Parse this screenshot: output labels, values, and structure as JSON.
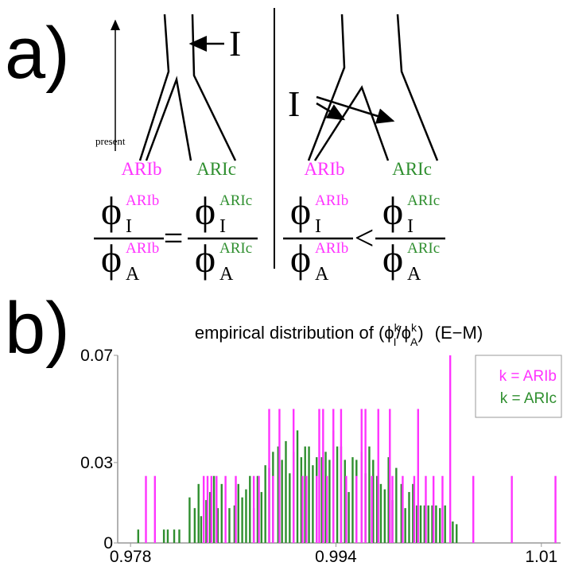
{
  "panel_a": {
    "label": "a)",
    "present": "present",
    "I_left": "I",
    "I_right": "I",
    "left_tree_labels": [
      "ARIb",
      "ARIc"
    ],
    "right_tree_labels": [
      "ARIb",
      "ARIc"
    ],
    "phi": "ϕ",
    "sub_I": "I",
    "sub_A": "A",
    "equals": "=",
    "less": "<"
  },
  "panel_b_label": "b)",
  "chart_data": {
    "type": "bar",
    "title": {
      "text": "empirical distribution of (",
      "phi": "ϕ",
      "sup": "k",
      "sub_num": "I",
      "slash": "/",
      "sub_den": "A",
      "close": ")",
      "method": "(E−M)"
    },
    "xlim": [
      0.977,
      1.0115
    ],
    "xticks": [
      0.978,
      0.994,
      1.01
    ],
    "ylim": [
      0,
      0.07
    ],
    "yticks": [
      0,
      0.03,
      0.07
    ],
    "legend": "upper right",
    "series": [
      {
        "name": "k = ARIc",
        "color": "#2f8f2f",
        "x": [
          0.9786,
          0.9806,
          0.9809,
          0.9814,
          0.9818,
          0.9826,
          0.983,
          0.9833,
          0.9835,
          0.9839,
          0.9842,
          0.9845,
          0.9848,
          0.9851,
          0.9857,
          0.9861,
          0.9864,
          0.9867,
          0.987,
          0.9873,
          0.9876,
          0.9879,
          0.9882,
          0.9885,
          0.9888,
          0.9891,
          0.9895,
          0.9898,
          0.9901,
          0.9904,
          0.9907,
          0.991,
          0.9913,
          0.9916,
          0.9919,
          0.9922,
          0.9925,
          0.9929,
          0.9932,
          0.9935,
          0.9938,
          0.9941,
          0.9944,
          0.9947,
          0.995,
          0.9953,
          0.9956,
          0.996,
          0.9963,
          0.9966,
          0.9969,
          0.9972,
          0.9975,
          0.9978,
          0.9981,
          0.9984,
          0.9987,
          0.9991,
          0.9994,
          0.9997,
          1.0,
          1.0003,
          1.0006,
          1.0009,
          1.0012,
          1.0015,
          1.0018,
          1.0021,
          1.0025,
          1.0031,
          1.0034
        ],
        "values": [
          0.005,
          0.005,
          0.005,
          0.005,
          0.005,
          0.017,
          0.013,
          0.022,
          0.01,
          0.016,
          0.019,
          0.025,
          0.013,
          0.022,
          0.013,
          0.014,
          0.022,
          0.017,
          0.02,
          0.025,
          0.013,
          0.025,
          0.019,
          0.029,
          0.028,
          0.034,
          0.036,
          0.031,
          0.038,
          0.026,
          0.034,
          0.042,
          0.032,
          0.036,
          0.036,
          0.029,
          0.032,
          0.032,
          0.034,
          0.031,
          0.042,
          0.036,
          0.036,
          0.031,
          0.019,
          0.032,
          0.031,
          0.034,
          0.026,
          0.036,
          0.031,
          0.025,
          0.022,
          0.02,
          0.032,
          0.016,
          0.028,
          0.022,
          0.013,
          0.019,
          0.022,
          0.014,
          0.014,
          0.014,
          0.014,
          0.014,
          0.014,
          0.013,
          0.014,
          0.008,
          0.007
        ]
      },
      {
        "name": "k = ARIb",
        "color": "#ff33ff",
        "x": [
          0.9792,
          0.9799,
          0.9837,
          0.984,
          0.9843,
          0.9847,
          0.9854,
          0.9862,
          0.9876,
          0.988,
          0.9888,
          0.9891,
          0.9896,
          0.9907,
          0.9914,
          0.9917,
          0.9925,
          0.9927,
          0.993,
          0.9933,
          0.9938,
          0.9944,
          0.9948,
          0.9956,
          0.996,
          0.9963,
          0.9968,
          0.9973,
          0.9982,
          0.9984,
          0.9992,
          1.0001,
          1.0004,
          1.001,
          1.0016,
          1.0023,
          1.0029,
          1.0047,
          1.0077,
          1.0111
        ],
        "values": [
          0.025,
          0.025,
          0.025,
          0.025,
          0.025,
          0.025,
          0.025,
          0.025,
          0.025,
          0.025,
          0.05,
          0.025,
          0.05,
          0.05,
          0.025,
          0.025,
          0.025,
          0.05,
          0.05,
          0.025,
          0.05,
          0.05,
          0.025,
          0.025,
          0.05,
          0.05,
          0.025,
          0.05,
          0.05,
          0.025,
          0.025,
          0.025,
          0.05,
          0.025,
          0.025,
          0.025,
          0.07,
          0.025,
          0.025,
          0.025
        ]
      }
    ]
  }
}
